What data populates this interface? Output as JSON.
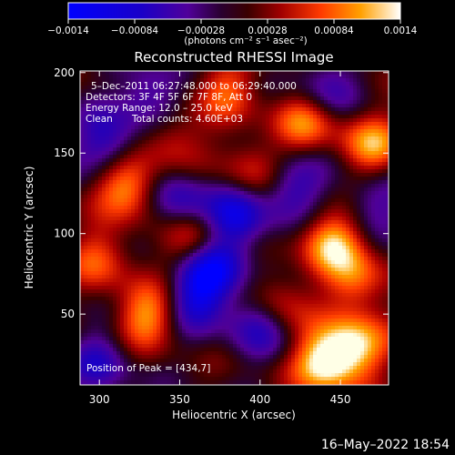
{
  "chart_data": {
    "type": "heatmap",
    "title": "Reconstructed RHESSI Image",
    "xlabel": "Heliocentric X (arcsec)",
    "ylabel": "Heliocentric Y (arcsec)",
    "xlim": [
      288,
      480
    ],
    "ylim": [
      6,
      201
    ],
    "xticks": [
      "300",
      "350",
      "400",
      "450"
    ],
    "yticks": [
      "50",
      "100",
      "150",
      "200"
    ],
    "colorbar": {
      "range": [
        -0.0014,
        0.0014
      ],
      "ticks": [
        "−0.0014",
        "−0.00084",
        "−0.00028",
        "0.00028",
        "0.00084",
        "0.0014"
      ],
      "unit_label": "(photons cm⁻² s⁻¹ asec⁻²)"
    },
    "annotations": {
      "time_range": "5–Dec–2011 06:27:48.000 to 06:29:40.000",
      "detectors": "Detectors: 3F 4F 5F 6F 7F 8F, Att 0",
      "energy": "Energy Range: 12.0 – 25.0 keV",
      "clean_label": "Clean",
      "total_counts": "Total counts: 4.60E+03",
      "peak": "Position of Peak = [434,7]"
    },
    "grid": false,
    "peak_position": [
      434,
      7
    ],
    "bright_regions": [
      {
        "x": 440,
        "y": 20,
        "level": 1.0
      },
      {
        "x": 460,
        "y": 30,
        "level": 0.9
      },
      {
        "x": 445,
        "y": 95,
        "level": 0.85
      },
      {
        "x": 330,
        "y": 50,
        "level": 0.8
      },
      {
        "x": 318,
        "y": 130,
        "level": 0.85
      },
      {
        "x": 470,
        "y": 155,
        "level": 0.75
      },
      {
        "x": 428,
        "y": 170,
        "level": 0.7
      },
      {
        "x": 360,
        "y": 95,
        "level": 0.7
      },
      {
        "x": 410,
        "y": 55,
        "level": 0.6
      },
      {
        "x": 300,
        "y": 85,
        "level": 0.55
      },
      {
        "x": 380,
        "y": 190,
        "level": 0.55
      },
      {
        "x": 460,
        "y": 70,
        "level": 0.6
      },
      {
        "x": 395,
        "y": 140,
        "level": 0.5
      },
      {
        "x": 345,
        "y": 160,
        "level": 0.45
      }
    ],
    "dark_regions": [
      {
        "x": 370,
        "y": 80,
        "level": -0.9
      },
      {
        "x": 385,
        "y": 110,
        "level": -0.8
      },
      {
        "x": 360,
        "y": 60,
        "level": -0.7
      },
      {
        "x": 420,
        "y": 130,
        "level": -0.6
      },
      {
        "x": 305,
        "y": 155,
        "level": -0.65
      },
      {
        "x": 400,
        "y": 45,
        "level": -0.7
      },
      {
        "x": 350,
        "y": 120,
        "level": -0.6
      },
      {
        "x": 440,
        "y": 190,
        "level": -0.5
      },
      {
        "x": 300,
        "y": 20,
        "level": -0.5
      },
      {
        "x": 470,
        "y": 120,
        "level": -0.45
      },
      {
        "x": 330,
        "y": 185,
        "level": -0.55
      }
    ]
  },
  "footer": {
    "timestamp": "16–May–2022 18:54"
  }
}
